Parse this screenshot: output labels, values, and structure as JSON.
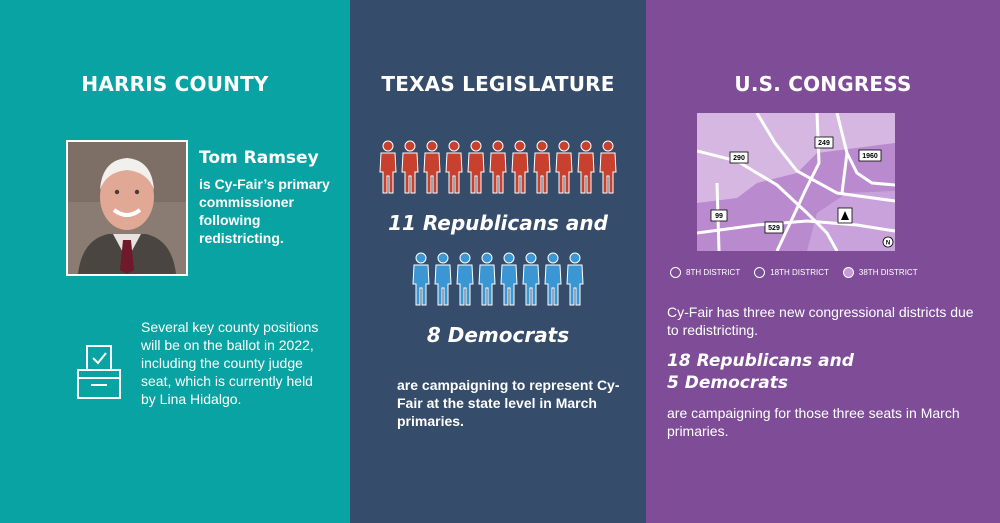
{
  "harris": {
    "heading": "HARRIS COUNTY",
    "name": "Tom Ramsey",
    "name_desc": "is Cy-Fair’s primary commissioner following redistricting.",
    "ballot_text": "Several key county positions will be on the ballot in 2022, including the county judge seat, which is currently held by Lina Hidalgo.",
    "colors": {
      "background": "#0aa3a3"
    }
  },
  "legislature": {
    "heading": "TEXAS LEGISLATURE",
    "republicans_count": 11,
    "democrats_count": 8,
    "republicans_line": "11 Republicans and",
    "democrats_line": "8 Democrats",
    "text": "are campaigning to represent Cy-Fair at the state level in March primaries.",
    "colors": {
      "background": "#354c6a",
      "republican": "#c8412f",
      "democrat": "#3b97d3"
    }
  },
  "congress": {
    "heading": "U.S. CONGRESS",
    "map_labels": {
      "r290": "290",
      "r249": "249",
      "r1960": "1960",
      "r99": "99",
      "r529": "529",
      "north": "N"
    },
    "legend": [
      {
        "label": "8TH DISTRICT",
        "color": "#7f4d98"
      },
      {
        "label": "18TH DISTRICT",
        "color": "#7f4d98"
      },
      {
        "label": "38TH DISTRICT",
        "color": "#c79ad8"
      }
    ],
    "text1": "Cy-Fair has three new congressional districts due to redistricting.",
    "big_line1": "18 Republicans and",
    "big_line2": "5 Democrats",
    "text2": "are campaigning for those three seats in March primaries.",
    "colors": {
      "background": "#7f4d98",
      "map_light": "#d6b7e2",
      "map_mid": "#b98ace"
    }
  }
}
